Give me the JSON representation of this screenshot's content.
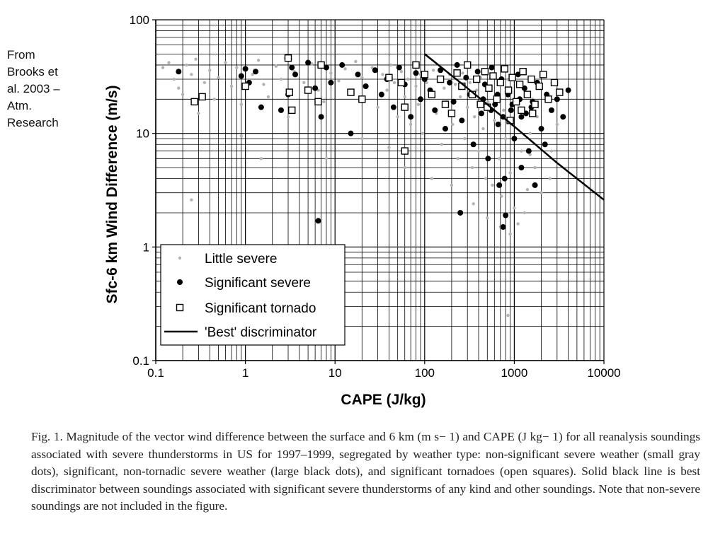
{
  "source_note": {
    "lines": [
      "From",
      "Brooks et",
      "al. 2003 –",
      "Atm.",
      "Research"
    ]
  },
  "chart_data": {
    "type": "scatter",
    "title": "",
    "xlabel": "CAPE (J/kg)",
    "ylabel": "Sfc-6 km Wind Difference (m/s)",
    "x_scale": "log",
    "y_scale": "log",
    "xlim": [
      0.1,
      10000
    ],
    "ylim": [
      0.1,
      100
    ],
    "x_ticks": [
      {
        "value": 0.1,
        "label": "0.1"
      },
      {
        "value": 1,
        "label": "1"
      },
      {
        "value": 10,
        "label": "10"
      },
      {
        "value": 100,
        "label": "100"
      },
      {
        "value": 1000,
        "label": "1000"
      },
      {
        "value": 10000,
        "label": "10000"
      }
    ],
    "y_ticks": [
      {
        "value": 0.1,
        "label": "0.1"
      },
      {
        "value": 1,
        "label": "1"
      },
      {
        "value": 10,
        "label": "10"
      },
      {
        "value": 100,
        "label": "100"
      }
    ],
    "grid": true,
    "legend_position": "bottom-left",
    "colors": {
      "little": "#b3b3b3",
      "significant": "#000000",
      "tornado": "#ffffff",
      "line": "#000000"
    },
    "series": [
      {
        "name": "Little severe",
        "marker": "small-gray-dot",
        "points": [
          [
            0.12,
            38
          ],
          [
            0.14,
            42
          ],
          [
            0.16,
            30
          ],
          [
            0.18,
            25
          ],
          [
            0.2,
            22
          ],
          [
            0.22,
            40
          ],
          [
            0.25,
            33
          ],
          [
            0.28,
            45
          ],
          [
            0.3,
            15
          ],
          [
            0.35,
            28
          ],
          [
            0.4,
            36
          ],
          [
            0.45,
            20
          ],
          [
            0.5,
            31
          ],
          [
            0.6,
            42
          ],
          [
            0.7,
            26
          ],
          [
            0.8,
            38
          ],
          [
            0.9,
            18
          ],
          [
            1.2,
            33
          ],
          [
            1.4,
            44
          ],
          [
            1.6,
            27
          ],
          [
            1.8,
            21
          ],
          [
            2.2,
            39
          ],
          [
            2.5,
            30
          ],
          [
            2.8,
            46
          ],
          [
            3.5,
            35
          ],
          [
            4.5,
            28
          ],
          [
            5.5,
            41
          ],
          [
            6.5,
            24
          ],
          [
            7.5,
            19
          ],
          [
            9,
            34
          ],
          [
            11,
            29
          ],
          [
            13,
            37
          ],
          [
            15,
            22
          ],
          [
            17,
            43
          ],
          [
            20,
            31
          ],
          [
            23,
            26
          ],
          [
            26,
            38
          ],
          [
            30,
            17
          ],
          [
            34,
            33
          ],
          [
            38,
            24
          ],
          [
            42,
            40
          ],
          [
            46,
            28
          ],
          [
            50,
            14
          ],
          [
            55,
            35
          ],
          [
            60,
            21
          ],
          [
            65,
            30
          ],
          [
            70,
            12
          ],
          [
            75,
            42
          ],
          [
            80,
            26
          ],
          [
            85,
            18
          ],
          [
            90,
            33
          ],
          [
            95,
            10
          ],
          [
            105,
            28
          ],
          [
            115,
            22
          ],
          [
            125,
            36
          ],
          [
            135,
            15
          ],
          [
            145,
            30
          ],
          [
            155,
            8
          ],
          [
            165,
            25
          ],
          [
            175,
            19
          ],
          [
            190,
            33
          ],
          [
            205,
            12
          ],
          [
            220,
            27
          ],
          [
            235,
            6
          ],
          [
            250,
            21
          ],
          [
            265,
            34
          ],
          [
            280,
            9
          ],
          [
            300,
            17
          ],
          [
            320,
            28
          ],
          [
            340,
            5
          ],
          [
            360,
            14
          ],
          [
            380,
            24
          ],
          [
            400,
            7
          ],
          [
            420,
            31
          ],
          [
            450,
            11
          ],
          [
            480,
            4
          ],
          [
            510,
            19
          ],
          [
            540,
            26
          ],
          [
            570,
            3.5
          ],
          [
            600,
            13
          ],
          [
            640,
            22
          ],
          [
            680,
            6
          ],
          [
            720,
            2.8
          ],
          [
            760,
            16
          ],
          [
            800,
            9
          ],
          [
            850,
            30
          ],
          [
            900,
            4.5
          ],
          [
            950,
            12
          ],
          [
            1000,
            2.2
          ],
          [
            1100,
            18
          ],
          [
            1200,
            7
          ],
          [
            1300,
            25
          ],
          [
            1400,
            3.2
          ],
          [
            1500,
            10
          ],
          [
            1600,
            20
          ],
          [
            1700,
            5
          ],
          [
            1800,
            14
          ],
          [
            2000,
            3
          ],
          [
            2200,
            8
          ],
          [
            2500,
            4
          ],
          [
            3000,
            12
          ],
          [
            0.9,
            9.5
          ],
          [
            1.5,
            6
          ],
          [
            0.25,
            2.6
          ],
          [
            3,
            14
          ],
          [
            8,
            6
          ],
          [
            20,
            9
          ],
          [
            40,
            7.5
          ],
          [
            60,
            5
          ],
          [
            120,
            4
          ],
          [
            200,
            3.5
          ],
          [
            350,
            2.4
          ],
          [
            500,
            1.8
          ],
          [
            700,
            1.5
          ],
          [
            900,
            1.3
          ],
          [
            1100,
            1.6
          ],
          [
            1300,
            2
          ],
          [
            850,
            0.25
          ],
          [
            1500,
            6.5
          ],
          [
            2600,
            7
          ]
        ]
      },
      {
        "name": "Significant severe",
        "marker": "large-black-dot",
        "points": [
          [
            0.18,
            35
          ],
          [
            0.9,
            32
          ],
          [
            1,
            37
          ],
          [
            1.1,
            28
          ],
          [
            1.3,
            35
          ],
          [
            1.5,
            17
          ],
          [
            2.5,
            16
          ],
          [
            3,
            22
          ],
          [
            3.3,
            38
          ],
          [
            3.6,
            33
          ],
          [
            5,
            42
          ],
          [
            6,
            25
          ],
          [
            7,
            14
          ],
          [
            8,
            38
          ],
          [
            9,
            28
          ],
          [
            12,
            40
          ],
          [
            15,
            10
          ],
          [
            18,
            33
          ],
          [
            22,
            26
          ],
          [
            28,
            36
          ],
          [
            33,
            22
          ],
          [
            38,
            30
          ],
          [
            45,
            17
          ],
          [
            52,
            38
          ],
          [
            60,
            27
          ],
          [
            70,
            14
          ],
          [
            80,
            34
          ],
          [
            90,
            20
          ],
          [
            100,
            30
          ],
          [
            115,
            24
          ],
          [
            130,
            16
          ],
          [
            150,
            36
          ],
          [
            170,
            11
          ],
          [
            190,
            28
          ],
          [
            210,
            19
          ],
          [
            230,
            40
          ],
          [
            260,
            13
          ],
          [
            290,
            31
          ],
          [
            320,
            22
          ],
          [
            350,
            8
          ],
          [
            390,
            35
          ],
          [
            430,
            15
          ],
          [
            470,
            27
          ],
          [
            510,
            6
          ],
          [
            560,
            38
          ],
          [
            610,
            18
          ],
          [
            660,
            12
          ],
          [
            720,
            30
          ],
          [
            780,
            4
          ],
          [
            850,
            22
          ],
          [
            920,
            16
          ],
          [
            1000,
            9
          ],
          [
            1100,
            33
          ],
          [
            1200,
            14
          ],
          [
            1300,
            25
          ],
          [
            1450,
            7
          ],
          [
            1600,
            19
          ],
          [
            1800,
            28
          ],
          [
            2000,
            11
          ],
          [
            2300,
            22
          ],
          [
            2600,
            16
          ],
          [
            3000,
            20
          ],
          [
            3500,
            14
          ],
          [
            4000,
            24
          ],
          [
            450,
            20
          ],
          [
            550,
            16
          ],
          [
            650,
            22
          ],
          [
            750,
            14
          ],
          [
            950,
            18
          ],
          [
            1150,
            20
          ],
          [
            1350,
            15
          ],
          [
            1550,
            17
          ],
          [
            250,
            2
          ],
          [
            800,
            1.9
          ],
          [
            750,
            1.5
          ],
          [
            6.5,
            1.7
          ],
          [
            2200,
            8
          ],
          [
            1700,
            3.5
          ],
          [
            1200,
            5
          ],
          [
            680,
            3.5
          ]
        ]
      },
      {
        "name": "Significant tornado",
        "marker": "open-square",
        "points": [
          [
            0.27,
            19
          ],
          [
            0.33,
            21
          ],
          [
            1,
            26
          ],
          [
            3,
            46
          ],
          [
            3.1,
            23
          ],
          [
            3.3,
            16
          ],
          [
            5,
            24
          ],
          [
            6.5,
            19
          ],
          [
            7,
            40
          ],
          [
            15,
            23
          ],
          [
            20,
            20
          ],
          [
            40,
            31
          ],
          [
            55,
            28
          ],
          [
            60,
            17
          ],
          [
            60,
            7
          ],
          [
            80,
            40
          ],
          [
            100,
            33
          ],
          [
            120,
            22
          ],
          [
            150,
            30
          ],
          [
            170,
            18
          ],
          [
            200,
            15
          ],
          [
            230,
            34
          ],
          [
            260,
            26
          ],
          [
            300,
            40
          ],
          [
            340,
            22
          ],
          [
            380,
            30
          ],
          [
            420,
            18
          ],
          [
            470,
            35
          ],
          [
            520,
            25
          ],
          [
            580,
            32
          ],
          [
            640,
            20
          ],
          [
            700,
            28
          ],
          [
            780,
            37
          ],
          [
            860,
            24
          ],
          [
            950,
            31
          ],
          [
            1050,
            19
          ],
          [
            1150,
            27
          ],
          [
            1250,
            35
          ],
          [
            1400,
            22
          ],
          [
            1550,
            30
          ],
          [
            1700,
            18
          ],
          [
            1900,
            26
          ],
          [
            2100,
            33
          ],
          [
            2400,
            20
          ],
          [
            2800,
            28
          ],
          [
            3200,
            23
          ],
          [
            500,
            17
          ],
          [
            1200,
            16
          ],
          [
            900,
            13
          ],
          [
            1600,
            15
          ]
        ]
      },
      {
        "name": "'Best' discriminator",
        "marker": "solid-line",
        "points": [
          [
            100,
            50
          ],
          [
            300,
            25
          ],
          [
            1000,
            11.5
          ],
          [
            3000,
            5.5
          ],
          [
            10000,
            2.6
          ]
        ]
      }
    ]
  },
  "caption": {
    "text": "Fig. 1. Magnitude of the vector wind difference between the surface and 6 km (m s− 1) and CAPE (J kg− 1) for all reanalysis soundings associated with severe thunderstorms in US for 1997–1999, segregated by weather type: non-significant severe weather (small gray dots), significant, non-tornadic severe weather (large black dots), and significant tornadoes (open squares). Solid black line is best discriminator between soundings associated with significant severe thunderstorms of any kind and other soundings. Note that non-severe soundings are not included in the figure."
  }
}
